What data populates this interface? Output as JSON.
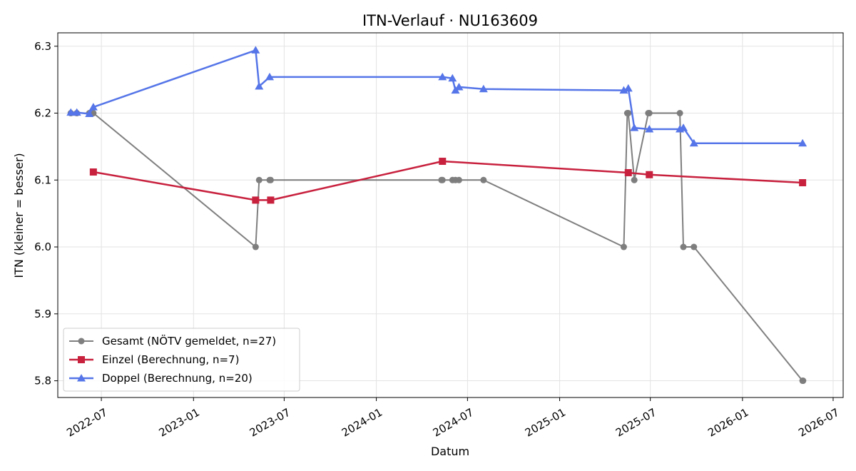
{
  "chart_data": {
    "type": "line",
    "title": "ITN-Verlauf · NU163609",
    "xlabel": "Datum",
    "ylabel": "ITN  (kleiner = besser)",
    "xlim": [
      "2022-04-05",
      "2026-07-21"
    ],
    "ylim": [
      5.775,
      6.32
    ],
    "x_ticks": [
      {
        "date": "2022-07-01",
        "label": "2022-07"
      },
      {
        "date": "2023-01-01",
        "label": "2023-01"
      },
      {
        "date": "2023-07-01",
        "label": "2023-07"
      },
      {
        "date": "2024-01-01",
        "label": "2024-01"
      },
      {
        "date": "2024-07-01",
        "label": "2024-07"
      },
      {
        "date": "2025-01-01",
        "label": "2025-01"
      },
      {
        "date": "2025-07-01",
        "label": "2025-07"
      },
      {
        "date": "2026-01-01",
        "label": "2026-01"
      },
      {
        "date": "2026-07-01",
        "label": "2026-07"
      }
    ],
    "y_ticks": [
      {
        "value": 5.8,
        "label": "5.8"
      },
      {
        "value": 5.9,
        "label": "5.9"
      },
      {
        "value": 6.0,
        "label": "6.0"
      },
      {
        "value": 6.1,
        "label": "6.1"
      },
      {
        "value": 6.2,
        "label": "6.2"
      },
      {
        "value": 6.3,
        "label": "6.3"
      }
    ],
    "grid": true,
    "legend_position": "lower-left",
    "series": [
      {
        "name": "Gesamt (NÖTV gemeldet, n=27)",
        "color": "#555555",
        "marker": "circle",
        "points": [
          {
            "x": "2022-05-01",
            "y": 6.2
          },
          {
            "x": "2022-05-13",
            "y": 6.2
          },
          {
            "x": "2022-06-07",
            "y": 6.2
          },
          {
            "x": "2022-06-15",
            "y": 6.2
          },
          {
            "x": "2023-05-05",
            "y": 6.0
          },
          {
            "x": "2023-05-12",
            "y": 6.1
          },
          {
            "x": "2023-06-02",
            "y": 6.1
          },
          {
            "x": "2023-06-04",
            "y": 6.1
          },
          {
            "x": "2024-05-10",
            "y": 6.1
          },
          {
            "x": "2024-05-12",
            "y": 6.1
          },
          {
            "x": "2024-06-01",
            "y": 6.1
          },
          {
            "x": "2024-06-07",
            "y": 6.1
          },
          {
            "x": "2024-06-14",
            "y": 6.1
          },
          {
            "x": "2024-08-02",
            "y": 6.1
          },
          {
            "x": "2025-05-09",
            "y": 6.0
          },
          {
            "x": "2025-05-16",
            "y": 6.2
          },
          {
            "x": "2025-05-18",
            "y": 6.2
          },
          {
            "x": "2025-05-30",
            "y": 6.1
          },
          {
            "x": "2025-06-27",
            "y": 6.2
          },
          {
            "x": "2025-06-29",
            "y": 6.2
          },
          {
            "x": "2025-08-29",
            "y": 6.2
          },
          {
            "x": "2025-09-05",
            "y": 6.0
          },
          {
            "x": "2025-09-26",
            "y": 6.0
          },
          {
            "x": "2026-05-01",
            "y": 5.8
          },
          {
            "x": "2026-05-02",
            "y": 5.8
          }
        ]
      },
      {
        "name": "Einzel (Berechnung, n=7)",
        "color": "#c8213e",
        "marker": "square",
        "points": [
          {
            "x": "2022-06-15",
            "y": 6.112
          },
          {
            "x": "2023-05-05",
            "y": 6.07
          },
          {
            "x": "2023-06-04",
            "y": 6.07
          },
          {
            "x": "2024-05-12",
            "y": 6.128
          },
          {
            "x": "2025-05-18",
            "y": 6.111
          },
          {
            "x": "2025-06-29",
            "y": 6.108
          },
          {
            "x": "2026-05-01",
            "y": 6.096
          }
        ]
      },
      {
        "name": "Doppel (Berechnung, n=20)",
        "color": "#5575e8",
        "marker": "triangle",
        "points": [
          {
            "x": "2022-05-01",
            "y": 6.201
          },
          {
            "x": "2022-05-13",
            "y": 6.201
          },
          {
            "x": "2022-06-07",
            "y": 6.199
          },
          {
            "x": "2022-06-15",
            "y": 6.209
          },
          {
            "x": "2023-05-05",
            "y": 6.294
          },
          {
            "x": "2023-05-12",
            "y": 6.24
          },
          {
            "x": "2023-06-02",
            "y": 6.254
          },
          {
            "x": "2024-05-12",
            "y": 6.254
          },
          {
            "x": "2024-06-01",
            "y": 6.252
          },
          {
            "x": "2024-06-07",
            "y": 6.234
          },
          {
            "x": "2024-06-14",
            "y": 6.239
          },
          {
            "x": "2024-08-02",
            "y": 6.236
          },
          {
            "x": "2025-05-09",
            "y": 6.234
          },
          {
            "x": "2025-05-18",
            "y": 6.237
          },
          {
            "x": "2025-05-30",
            "y": 6.178
          },
          {
            "x": "2025-06-29",
            "y": 6.176
          },
          {
            "x": "2025-08-29",
            "y": 6.176
          },
          {
            "x": "2025-09-05",
            "y": 6.178
          },
          {
            "x": "2025-09-26",
            "y": 6.155
          },
          {
            "x": "2026-05-01",
            "y": 6.155
          }
        ]
      }
    ]
  }
}
